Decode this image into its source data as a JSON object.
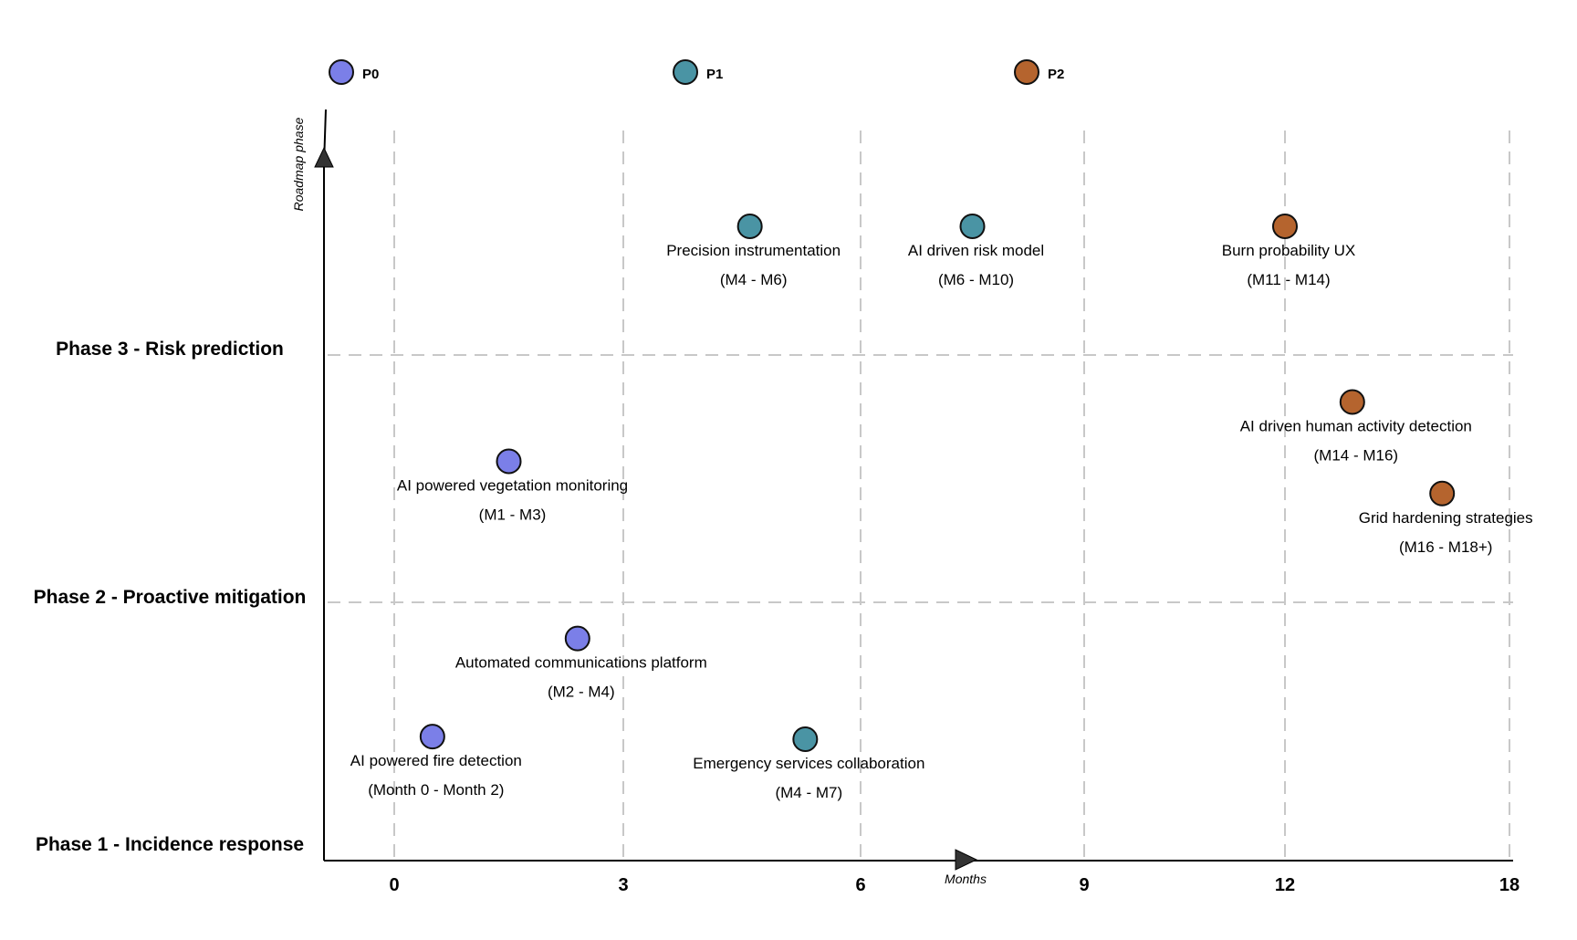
{
  "chart_data": {
    "type": "scatter",
    "title": "",
    "xlabel": "Months",
    "ylabel": "Roadmap phase",
    "x_ticks": [
      "0",
      "3",
      "6",
      "9",
      "12",
      "18"
    ],
    "y_phases": [
      "Phase 1 - Incidence response",
      "Phase 2 - Proactive mitigation",
      "Phase 3 - Risk prediction"
    ],
    "legend": [
      {
        "key": "P0",
        "label": "P0",
        "color": "#7b7fe8"
      },
      {
        "key": "P1",
        "label": "P1",
        "color": "#4a94a4"
      },
      {
        "key": "P2",
        "label": "P2",
        "color": "#b5642e"
      }
    ],
    "items": [
      {
        "name": "Precision instrumentation",
        "range": "(M4 - M6)",
        "priority": "P1",
        "phase": 3,
        "x": 4.6,
        "level": 0.53
      },
      {
        "name": "AI driven risk model",
        "range": "(M6 - M10)",
        "priority": "P1",
        "phase": 3,
        "x": 7.5,
        "level": 0.53
      },
      {
        "name": "Burn probability UX",
        "range": "(M11 - M14)",
        "priority": "P2",
        "phase": 3,
        "x": 12.0,
        "level": 0.53
      },
      {
        "name": "AI driven human activity detection",
        "range": "(M14 - M16)",
        "priority": "P2",
        "phase": 2,
        "x": 13.8,
        "level": 0.81
      },
      {
        "name": "Grid hardening strategies",
        "range": "(M16 - M18+)",
        "priority": "P2",
        "phase": 2,
        "x": 16.2,
        "level": 0.44
      },
      {
        "name": "AI powered vegetation monitoring",
        "range": "(M1 - M3)",
        "priority": "P0",
        "phase": 2,
        "x": 1.5,
        "level": 0.57
      },
      {
        "name": "Automated communications platform",
        "range": "(M2 - M4)",
        "priority": "P0",
        "phase": 1,
        "x": 2.4,
        "level": 0.86
      },
      {
        "name": "AI powered fire detection",
        "range": "(Month 0 - Month 2)",
        "priority": "P0",
        "phase": 1,
        "x": 0.5,
        "level": 0.48
      },
      {
        "name": "Emergency services collaboration",
        "range": "(M4 - M7)",
        "priority": "P1",
        "phase": 1,
        "x": 5.3,
        "level": 0.47
      }
    ]
  }
}
